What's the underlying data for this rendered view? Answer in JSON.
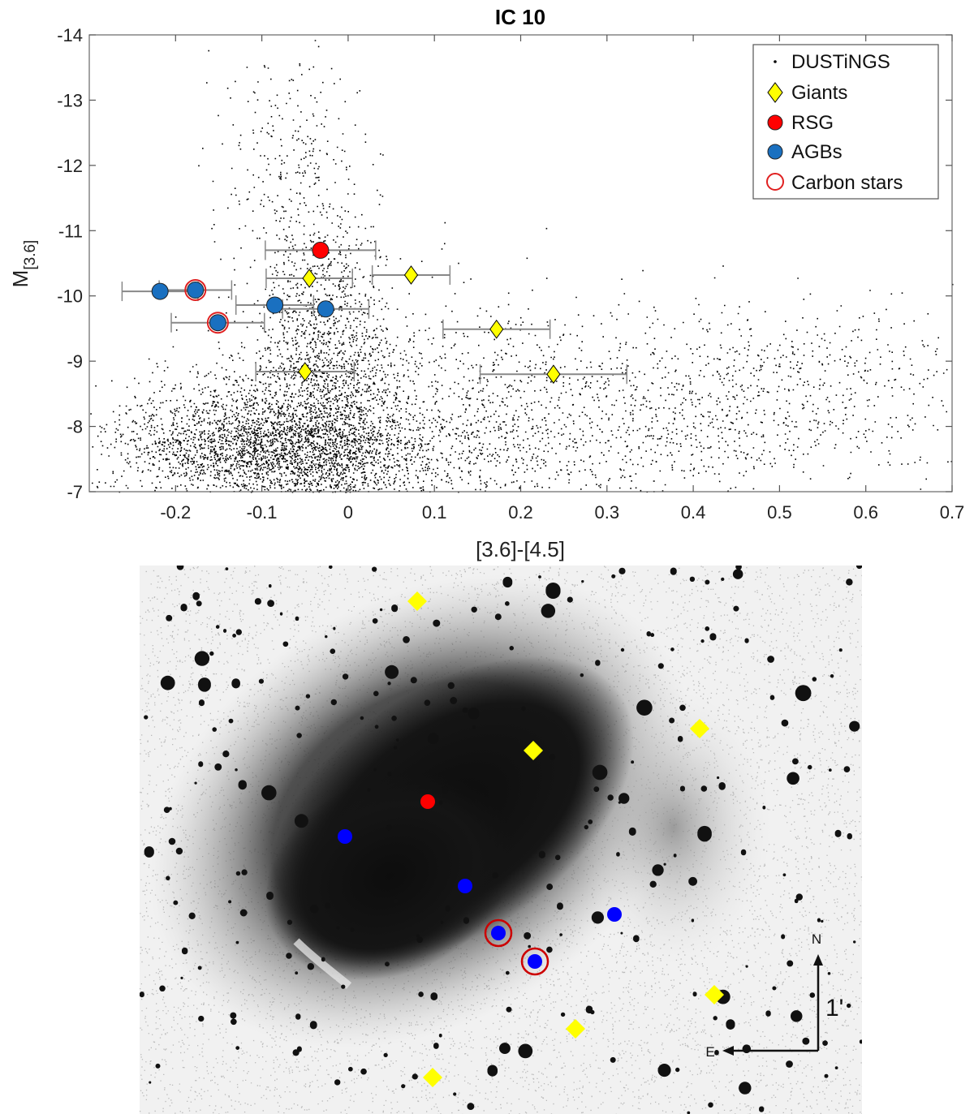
{
  "chart_data": [
    {
      "type": "scatter",
      "title": "IC 10",
      "xlabel": "[3.6]-[4.5]",
      "ylabel_main": "M",
      "ylabel_sub": "[3.6]",
      "xlim": [
        -0.3,
        0.7
      ],
      "ylim": [
        -7,
        -14
      ],
      "y_axis_inverted": true,
      "xticks": [
        -0.2,
        -0.1,
        0,
        0.1,
        0.2,
        0.3,
        0.4,
        0.5,
        0.6,
        0.7
      ],
      "xtick_labels": [
        "-0.2",
        "-0.1",
        "0",
        "0.1",
        "0.2",
        "0.3",
        "0.4",
        "0.5",
        "0.6",
        "0.7"
      ],
      "yticks": [
        -14,
        -13,
        -12,
        -11,
        -10,
        -9,
        -8,
        -7
      ],
      "ytick_labels": [
        "-14",
        "-13",
        "-12",
        "-11",
        "-10",
        "-9",
        "-8",
        "-7"
      ],
      "grid": false,
      "legend_position": "top-right",
      "background_series": {
        "name": "DUSTiNGS",
        "marker": "dot",
        "color": "#000000",
        "note_density": "dense point cloud",
        "clumps": [
          {
            "cx": -0.06,
            "cy": -7.6,
            "sx": 0.09,
            "sy": 0.45,
            "n": 2600
          },
          {
            "cx": -0.13,
            "cy": -7.9,
            "sx": 0.09,
            "sy": 0.5,
            "n": 900
          },
          {
            "cx": -0.02,
            "cy": -8.8,
            "sx": 0.05,
            "sy": 0.6,
            "n": 900
          },
          {
            "cx": -0.03,
            "cy": -10.0,
            "sx": 0.035,
            "sy": 0.8,
            "n": 500
          },
          {
            "cx": -0.06,
            "cy": -11.8,
            "sx": 0.04,
            "sy": 0.9,
            "n": 230
          },
          {
            "cx": -0.09,
            "cy": -13.1,
            "sx": 0.04,
            "sy": 0.4,
            "n": 40
          },
          {
            "cx": 0.16,
            "cy": -8.3,
            "sx": 0.07,
            "sy": 0.8,
            "n": 450
          },
          {
            "cx": 0.45,
            "cy": -8.6,
            "sx": 0.15,
            "sy": 0.65,
            "n": 900
          },
          {
            "cx": 0.3,
            "cy": -7.6,
            "sx": 0.15,
            "sy": 0.45,
            "n": 450
          }
        ]
      },
      "series": [
        {
          "name": "Giants",
          "marker": "diamond",
          "color": "#ffff00",
          "points": [
            {
              "x": -0.045,
              "y": -10.27,
              "xerr": 0.05
            },
            {
              "x": 0.073,
              "y": -10.32,
              "xerr": 0.045
            },
            {
              "x": 0.172,
              "y": -9.49,
              "xerr": 0.062
            },
            {
              "x": -0.05,
              "y": -8.84,
              "xerr": 0.057
            },
            {
              "x": 0.238,
              "y": -8.8,
              "xerr": 0.085
            }
          ]
        },
        {
          "name": "RSG",
          "marker": "circle",
          "color": "#ff0000",
          "points": [
            {
              "x": -0.032,
              "y": -10.7,
              "xerr": 0.064
            }
          ]
        },
        {
          "name": "AGBs",
          "marker": "circle",
          "color": "#1a70c0",
          "points": [
            {
              "x": -0.218,
              "y": -10.07,
              "xerr": 0.044
            },
            {
              "x": -0.177,
              "y": -10.09,
              "xerr": 0.042
            },
            {
              "x": -0.151,
              "y": -9.59,
              "xerr": 0.054
            },
            {
              "x": -0.085,
              "y": -9.86,
              "xerr": 0.045
            },
            {
              "x": -0.026,
              "y": -9.8,
              "xerr": 0.05
            }
          ]
        },
        {
          "name": "Carbon stars",
          "marker": "open-circle",
          "color": "#e02020",
          "points": [
            {
              "x": -0.177,
              "y": -10.09
            },
            {
              "x": -0.151,
              "y": -9.59
            }
          ]
        }
      ]
    },
    {
      "type": "image",
      "description_kind": "greyscale sky image with source markers",
      "compass": {
        "north_label": "N",
        "east_label": "E",
        "scale_label": "1'"
      },
      "marker_colors": {
        "giant": "#ffff00",
        "rsg": "#ff0000",
        "agb": "#0000ff",
        "carbon_ring": "#cc0000"
      }
    }
  ]
}
